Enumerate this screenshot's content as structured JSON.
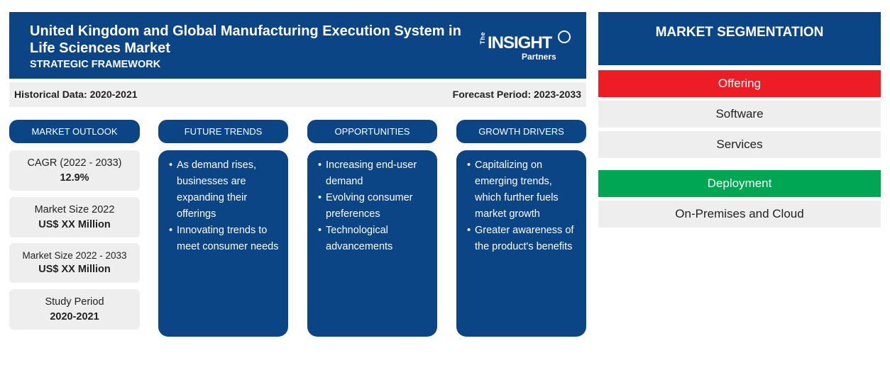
{
  "header": {
    "title": "United Kingdom and Global Manufacturing Execution System in Life Sciences Market",
    "subtitle": "STRATEGIC FRAMEWORK",
    "logo": {
      "the": "The",
      "insight": "INSIGHT",
      "partners": "Partners"
    }
  },
  "period": {
    "historical": "Historical Data: 2020-2021",
    "forecast": "Forecast Period: 2023-2033"
  },
  "columns": {
    "outlook": "MARKET OUTLOOK",
    "trends": "FUTURE TRENDS",
    "opportunities": "OPPORTUNITIES",
    "drivers": "GROWTH DRIVERS"
  },
  "outlook": [
    {
      "label": "CAGR (2022 - 2033)",
      "value": "12.9%"
    },
    {
      "label": "Market Size 2022",
      "value": "US$ XX Million"
    },
    {
      "label": "Market Size 2022 - 2033",
      "value": "US$ XX Million"
    },
    {
      "label": "Study Period",
      "value": "2020-2021"
    }
  ],
  "trends": [
    "As demand rises, businesses are expanding their offerings",
    "Innovating trends to meet consumer needs"
  ],
  "opportunities": [
    "Increasing end-user demand",
    "Evolving consumer preferences",
    "Technological advancements"
  ],
  "drivers": [
    "Capitalizing on emerging trends, which further fuels market growth",
    "Greater awareness of the product's benefits"
  ],
  "segmentation": {
    "title": "MARKET SEGMENTATION",
    "groups": [
      {
        "name": "Offering",
        "color": "#ee1c25",
        "items": [
          "Software",
          "Services"
        ]
      },
      {
        "name": "Deployment",
        "color": "#00a651",
        "items": [
          "On-Premises and Cloud"
        ]
      }
    ]
  },
  "colors": {
    "navy": "#0b4586",
    "light_gray": "#eeeeee",
    "offering_red": "#ee1c25",
    "deployment_green": "#00a651"
  }
}
